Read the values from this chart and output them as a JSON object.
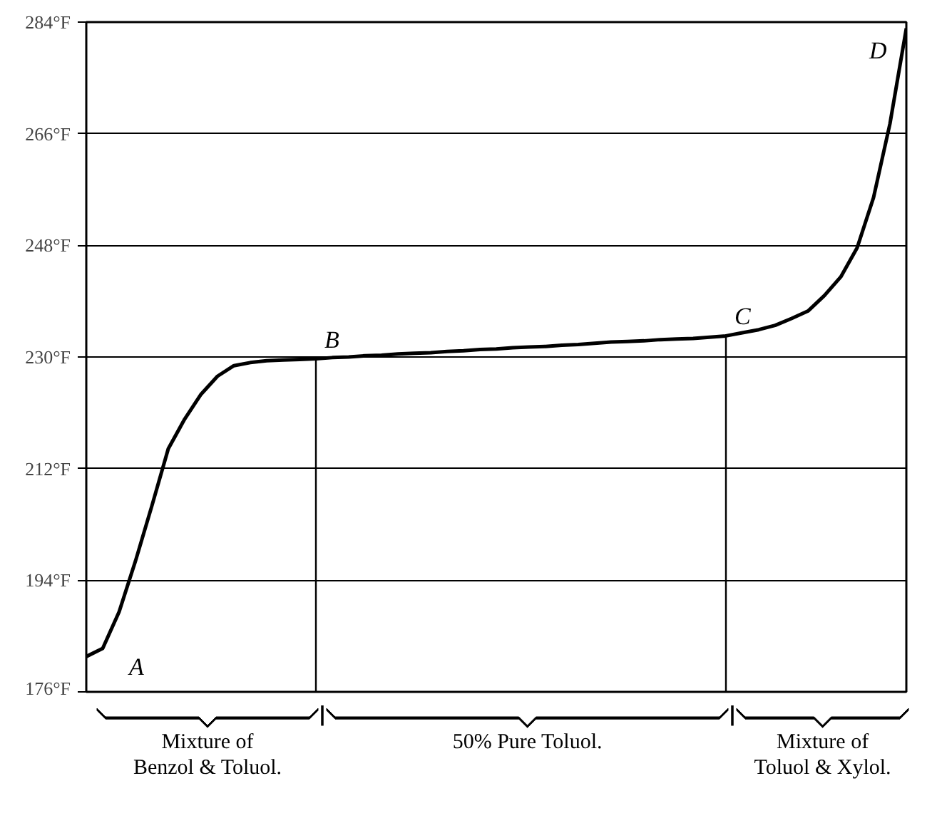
{
  "chart_data": {
    "type": "line",
    "categories": [
      null,
      null,
      null,
      null,
      null,
      null,
      null,
      null,
      null,
      null,
      null,
      null,
      null,
      null,
      null,
      null,
      null,
      null,
      null,
      null,
      null,
      null,
      null,
      null,
      null,
      null,
      null,
      null,
      null,
      null,
      null,
      null,
      null,
      null,
      null,
      null,
      null,
      null,
      null,
      null,
      null,
      null,
      null,
      null,
      null,
      null,
      null,
      null,
      null,
      null,
      null
    ],
    "series": [
      {
        "color": "#000000",
        "values": [
          181.7,
          183.0,
          188.9,
          197.1,
          206.0,
          215.2,
          220.0,
          224.0,
          226.9,
          228.6,
          229.1,
          229.4,
          229.5,
          229.6,
          229.7,
          229.9,
          230.0,
          230.2,
          230.3,
          230.5,
          230.6,
          230.7,
          230.9,
          231.0,
          231.2,
          231.3,
          231.5,
          231.6,
          231.7,
          231.9,
          232.0,
          232.2,
          232.4,
          232.5,
          232.6,
          232.8,
          232.9,
          233.0,
          233.2,
          233.4,
          233.9,
          234.4,
          235.1,
          236.2,
          237.4,
          239.9,
          242.9,
          247.6,
          255.7,
          267.6,
          283.0
        ]
      }
    ],
    "ylim": [
      176,
      284
    ],
    "yticks": [
      {
        "value": 176,
        "label": "176°F"
      },
      {
        "value": 194,
        "label": "194°F"
      },
      {
        "value": 212,
        "label": "212°F"
      },
      {
        "value": 230,
        "label": "230°F"
      },
      {
        "value": 248,
        "label": "248°F"
      },
      {
        "value": 266,
        "label": "266°F"
      },
      {
        "value": 284,
        "label": "284°F"
      }
    ],
    "grid": "y",
    "annotations": [
      "A",
      {
        "text": "B",
        "y": 229.7
      },
      {
        "text": "C",
        "y": 233.4
      },
      "D",
      "Mixture of\nBenzol & Toluol.",
      "50% Pure Toluol.",
      "Mixture of\nToluol & Xylol."
    ]
  }
}
